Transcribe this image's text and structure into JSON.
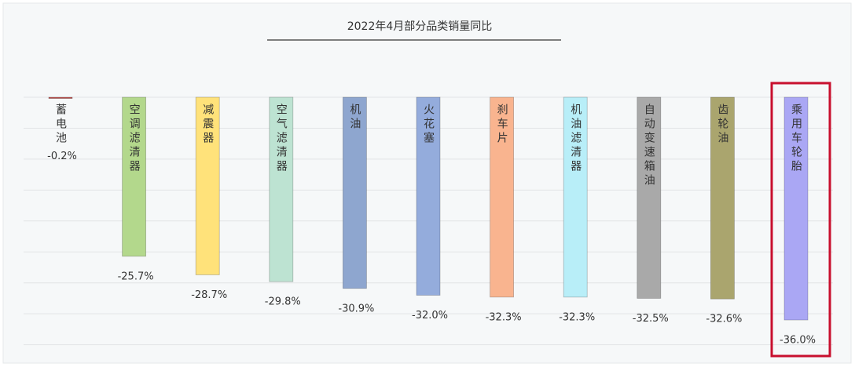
{
  "chart_data": {
    "type": "bar",
    "title": "2022年4月部分品类销量同比",
    "categories": [
      "蓄电池",
      "空调滤清器",
      "减震器",
      "空气滤清器",
      "机油",
      "火花塞",
      "刹车片",
      "机油滤清器",
      "自动变速箱油",
      "齿轮油",
      "乘用车轮胎"
    ],
    "values": [
      -0.2,
      -25.7,
      -28.7,
      -29.8,
      -30.9,
      -32.0,
      -32.3,
      -32.3,
      -32.5,
      -32.6,
      -36.0
    ],
    "value_labels": [
      "-0.2%",
      "-25.7%",
      "-28.7%",
      "-29.8%",
      "-30.9%",
      "-32.0%",
      "-32.3%",
      "-32.3%",
      "-32.5%",
      "-32.6%",
      "-36.0%"
    ],
    "colors": [
      "#c0504d",
      "#b3d88c",
      "#ffe27a",
      "#bde3d2",
      "#8ea6cf",
      "#94acdc",
      "#f9b48f",
      "#b8eef8",
      "#a9a9a9",
      "#aaa56e",
      "#aaa7f4"
    ],
    "ylim": [
      -40,
      0
    ],
    "yticks": [
      0,
      -5,
      -10,
      -15,
      -20,
      -25,
      -30,
      -35,
      -40
    ],
    "grid": true
  }
}
